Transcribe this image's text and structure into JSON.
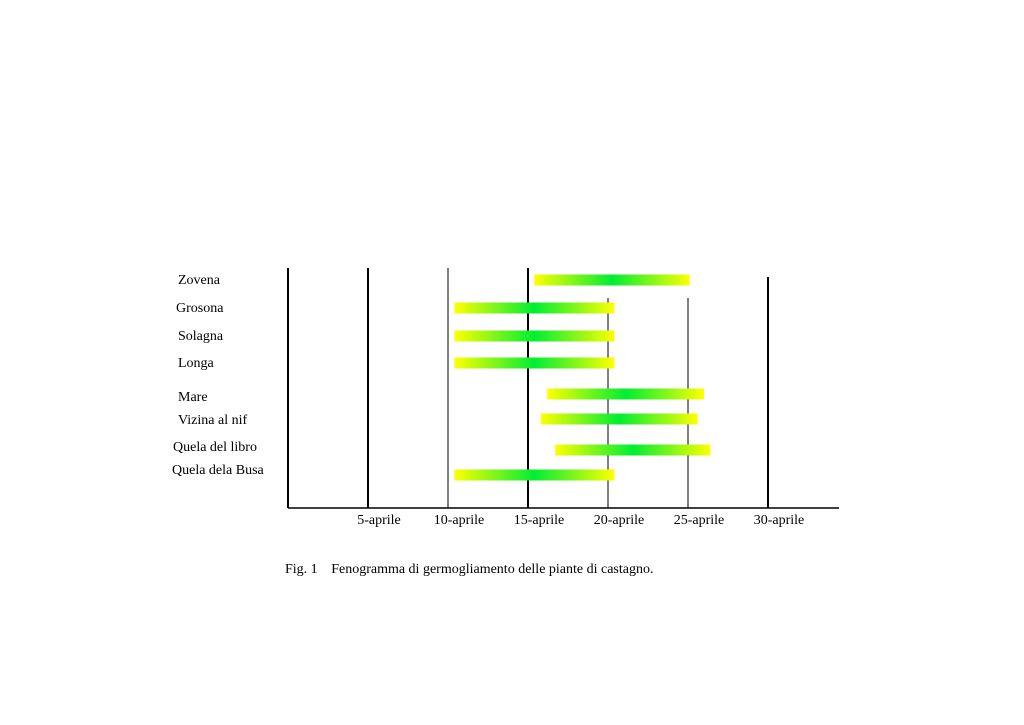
{
  "chart_data": {
    "type": "bar",
    "subtype": "gantt",
    "title": "",
    "xlabel": "",
    "ylabel": "",
    "x_ticks": [
      "5-aprile",
      "10-aprile",
      "15-aprile",
      "20-aprile",
      "25-aprile",
      "30-aprile"
    ],
    "x_tick_values": [
      5,
      10,
      15,
      20,
      25,
      30
    ],
    "xlim": [
      0,
      35
    ],
    "x_unit_note": "",
    "categories": [
      "Zovena",
      "Grosona",
      "Solagna",
      "Longa",
      "Mare",
      "Vizina al nif",
      "Quela del libro",
      "Quela dela Busa"
    ],
    "series": [
      {
        "name": "",
        "ranges": [
          [
            15.4,
            25.1
          ],
          [
            10.4,
            20.4
          ],
          [
            10.4,
            20.4
          ],
          [
            10.4,
            20.4
          ],
          [
            16.2,
            26.0
          ],
          [
            15.8,
            25.6
          ],
          [
            16.7,
            26.4
          ],
          [
            10.4,
            20.4
          ]
        ]
      }
    ],
    "grid": true,
    "bar_gradient": {
      "edge_color": "#ffff00",
      "center_color": "#00ee33"
    },
    "legend": "none"
  },
  "caption": {
    "number": "Fig. 1",
    "text": "Fenogramma di germogliamento delle piante di castagno."
  }
}
